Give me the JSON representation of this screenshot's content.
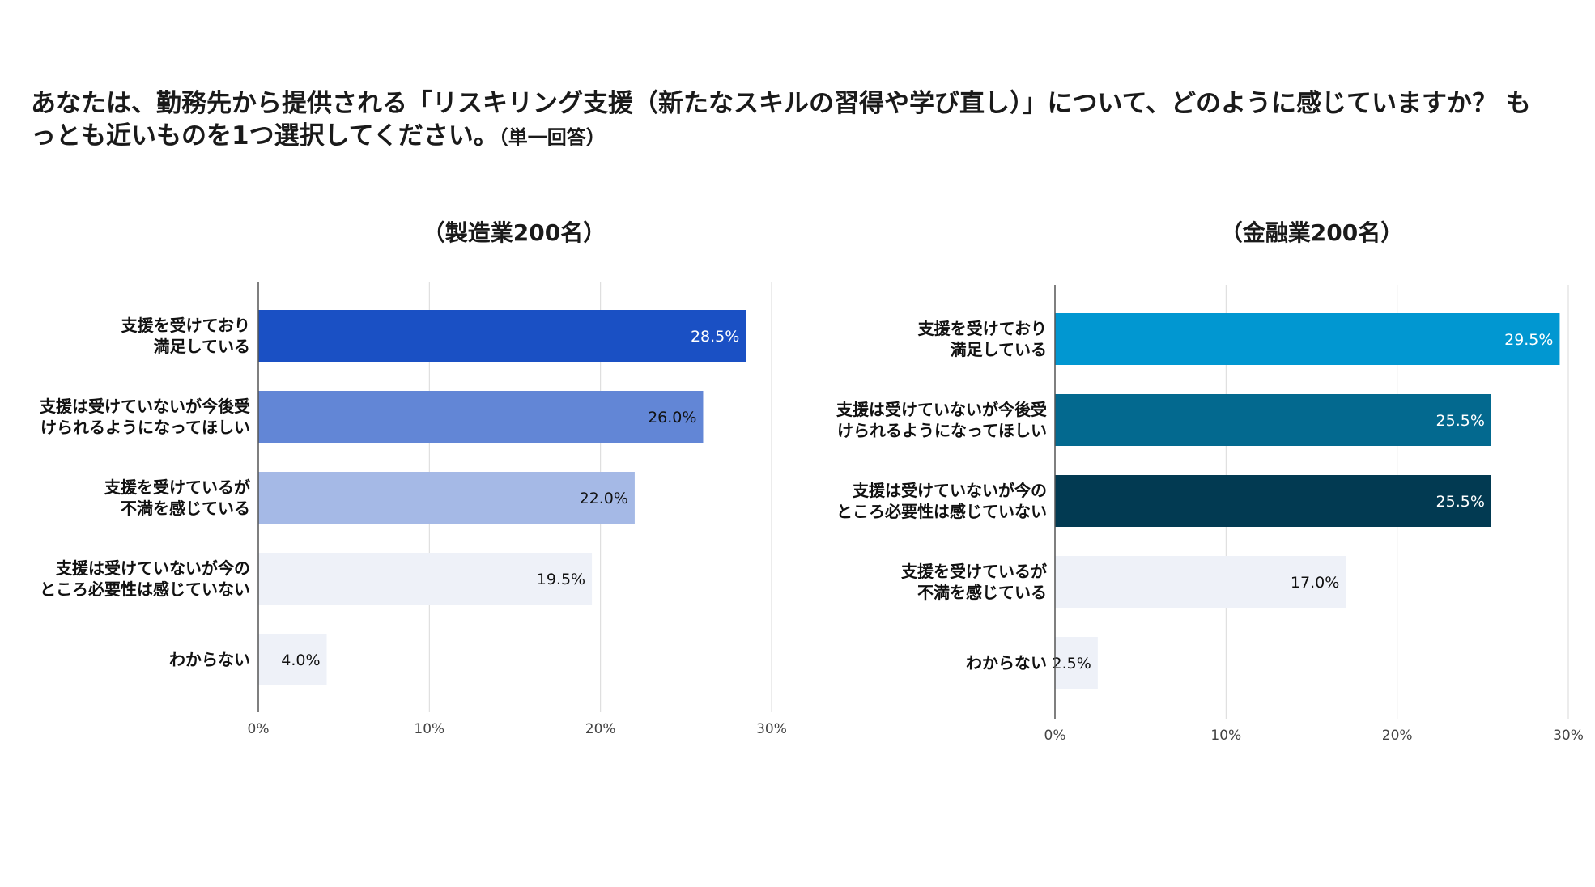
{
  "question": {
    "text": "あなたは、勤務先から提供される「リスキリング支援（新たなスキルの習得や学び直し）」について、どのように感じていますか？ もっとも近いものを1つ選択してください。",
    "note": "（単一回答）"
  },
  "chart_data": [
    {
      "type": "bar",
      "orientation": "horizontal",
      "title": "（製造業200名）",
      "categories": [
        [
          "支援を受けており",
          "満足している"
        ],
        [
          "支援は受けていないが今後受",
          "けられるようになってほしい"
        ],
        [
          "支援を受けているが",
          "不満を感じている"
        ],
        [
          "支援は受けていないが今の",
          "ところ必要性は感じていない"
        ],
        [
          "わからない"
        ]
      ],
      "values": [
        28.5,
        26.0,
        22.0,
        19.5,
        4.0
      ],
      "value_labels": [
        "28.5%",
        "26.0%",
        "22.0%",
        "19.5%",
        "4.0%"
      ],
      "colors": [
        "#1a50c4",
        "#6286d6",
        "#a5b9e6",
        "#eef1f8",
        "#eef1f8"
      ],
      "label_colors": [
        "#ffffff",
        "#111111",
        "#111111",
        "#111111",
        "#111111"
      ],
      "xlim": [
        0,
        30
      ],
      "xticks": [
        "0%",
        "10%",
        "20%",
        "30%"
      ],
      "grid": true
    },
    {
      "type": "bar",
      "orientation": "horizontal",
      "title": "（金融業200名）",
      "categories": [
        [
          "支援を受けており",
          "満足している"
        ],
        [
          "支援は受けていないが今後受",
          "けられるようになってほしい"
        ],
        [
          "支援は受けていないが今の",
          "ところ必要性は感じていない"
        ],
        [
          "支援を受けているが",
          "不満を感じている"
        ],
        [
          "わからない"
        ]
      ],
      "values": [
        29.5,
        25.5,
        25.5,
        17.0,
        2.5
      ],
      "value_labels": [
        "29.5%",
        "25.5%",
        "25.5%",
        "17.0%",
        "2.5%"
      ],
      "colors": [
        "#0197d1",
        "#03698f",
        "#023a52",
        "#eef1f8",
        "#eef1f8"
      ],
      "label_colors": [
        "#ffffff",
        "#ffffff",
        "#ffffff",
        "#111111",
        "#111111"
      ],
      "xlim": [
        0,
        30
      ],
      "xticks": [
        "0%",
        "10%",
        "20%",
        "30%"
      ],
      "grid": true
    }
  ]
}
